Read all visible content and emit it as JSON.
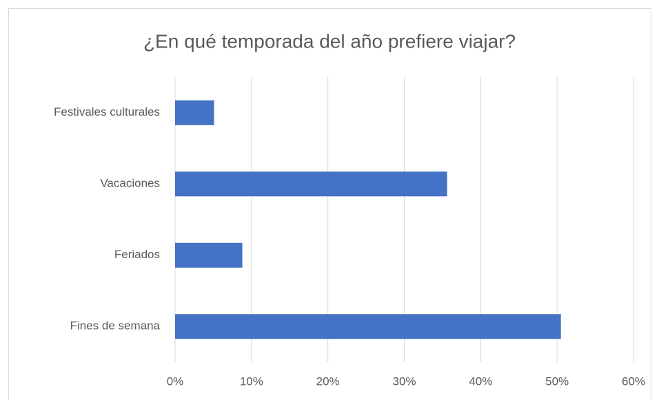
{
  "chart_data": {
    "type": "bar",
    "orientation": "horizontal",
    "title": "¿En qué temporada del año prefiere viajar?",
    "categories": [
      "Festivales culturales",
      "Vacaciones",
      "Feriados",
      "Fines de semana"
    ],
    "values": [
      5.1,
      35.6,
      8.8,
      50.5
    ],
    "color": "#4472c4",
    "xlim": [
      0,
      60
    ],
    "xticks": [
      {
        "value": 0,
        "label": "0%"
      },
      {
        "value": 10,
        "label": "10%"
      },
      {
        "value": 20,
        "label": "20%"
      },
      {
        "value": 30,
        "label": "30%"
      },
      {
        "value": 40,
        "label": "40%"
      },
      {
        "value": 50,
        "label": "50%"
      },
      {
        "value": 60,
        "label": "60%"
      }
    ],
    "grid": true
  }
}
